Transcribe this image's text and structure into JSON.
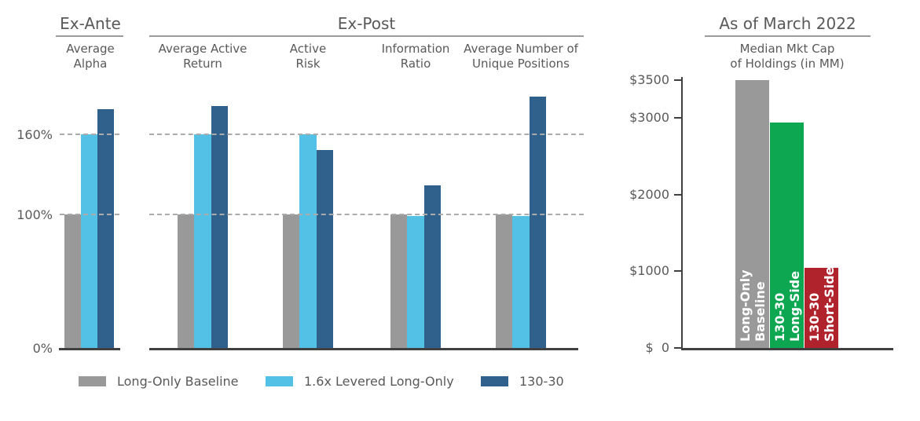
{
  "legend": {
    "items": [
      {
        "label": "Long-Only Baseline",
        "color": "#999999"
      },
      {
        "label": "1.6x Levered Long-Only",
        "color": "#53C1E6"
      },
      {
        "label": "130-30",
        "color": "#30618D"
      }
    ]
  },
  "chart_data": [
    {
      "type": "bar",
      "title": "Ex-Ante",
      "categories": [
        "Average Alpha"
      ],
      "category_lines": [
        [
          "Average",
          "Alpha"
        ]
      ],
      "unit": "percent of Long-Only Baseline",
      "ylim": [
        0,
        195
      ],
      "gridlines": [
        160,
        100
      ],
      "yticks": [
        {
          "label": "160%",
          "value": 160
        },
        {
          "label": "100%",
          "value": 100
        },
        {
          "label": "0%",
          "value": 0
        }
      ],
      "series": [
        {
          "name": "Long-Only Baseline",
          "color": "#999999",
          "values": [
            100
          ]
        },
        {
          "name": "1.6x Levered Long-Only",
          "color": "#53C1E6",
          "values": [
            160
          ]
        },
        {
          "name": "130-30",
          "color": "#30618D",
          "values": [
            179
          ]
        }
      ]
    },
    {
      "type": "bar",
      "title": "Ex-Post",
      "categories": [
        "Average Active Return",
        "Active Risk",
        "Information Ratio",
        "Average Number of Unique Positions"
      ],
      "category_lines": [
        [
          "Average Active",
          "Return"
        ],
        [
          "Active",
          "Risk"
        ],
        [
          "Information",
          "Ratio"
        ],
        [
          "Average Number of",
          "Unique Positions"
        ]
      ],
      "unit": "percent of Long-Only Baseline",
      "ylim": [
        0,
        195
      ],
      "gridlines": [
        160,
        100
      ],
      "series": [
        {
          "name": "Long-Only Baseline",
          "color": "#999999",
          "values": [
            100,
            100,
            100,
            100
          ]
        },
        {
          "name": "1.6x Levered Long-Only",
          "color": "#53C1E6",
          "values": [
            160,
            160,
            99,
            99
          ]
        },
        {
          "name": "130-30",
          "color": "#30618D",
          "values": [
            181,
            148,
            122,
            188
          ]
        }
      ]
    },
    {
      "type": "bar",
      "title": "As of March 2022",
      "subtitle": "Median Mkt Cap of Holdings (in MM)",
      "subtitle_lines": [
        "Median Mkt Cap",
        "of Holdings (in MM)"
      ],
      "categories": [
        "Long-Only Baseline",
        "130-30 Long-Side",
        "130-30 Short-Side"
      ],
      "bar_label_lines": [
        [
          "Long-Only",
          "Baseline"
        ],
        [
          "130-30",
          "Long-Side"
        ],
        [
          "130-30",
          "Short-Side"
        ]
      ],
      "values": [
        3500,
        2940,
        1050
      ],
      "colors": [
        "#999999",
        "#0CA750",
        "#B0222C"
      ],
      "ylim": [
        0,
        3500
      ],
      "yticks": [
        {
          "label": "$3500",
          "value": 3500
        },
        {
          "label": "$3000",
          "value": 3000
        },
        {
          "label": "$2000",
          "value": 2000
        },
        {
          "label": "$1000",
          "value": 1000
        },
        {
          "label": "$  0",
          "value": 0
        }
      ]
    }
  ]
}
